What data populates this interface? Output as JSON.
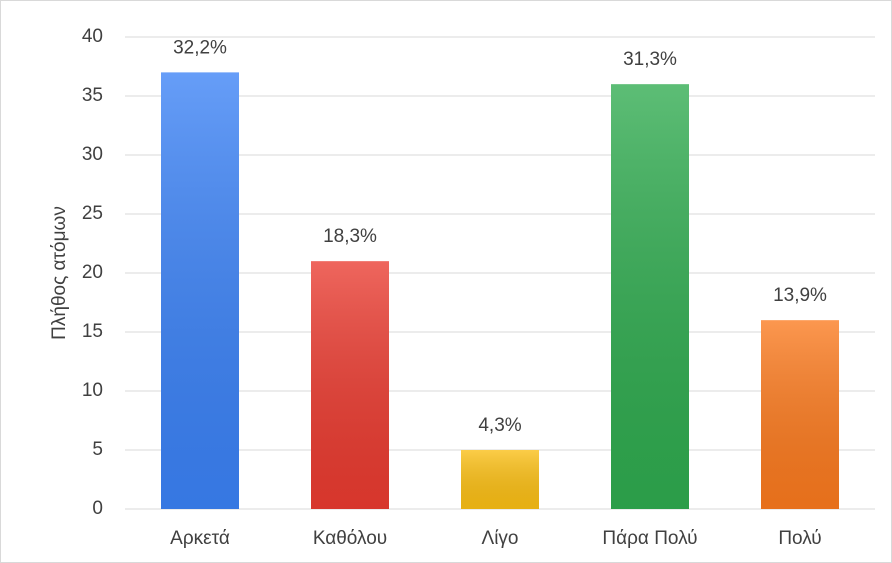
{
  "chart_data": {
    "type": "bar",
    "y_label": "Πλήθος ατόμων",
    "categories": [
      "Αρκετά",
      "Καθόλου",
      "Λίγο",
      "Πάρα Πολύ",
      "Πολύ"
    ],
    "values": [
      37,
      21,
      5,
      36,
      16
    ],
    "data_labels": [
      "32,2%",
      "18,3%",
      "4,3%",
      "31,3%",
      "13,9%"
    ],
    "colors": [
      "#3b82f6",
      "#ea3b30",
      "#fbbf14",
      "#2fab4f",
      "#fb7a1e"
    ],
    "ylim": [
      0,
      40
    ],
    "yticks": [
      0,
      5,
      10,
      15,
      20,
      25,
      30,
      35,
      40
    ],
    "grid": true
  }
}
